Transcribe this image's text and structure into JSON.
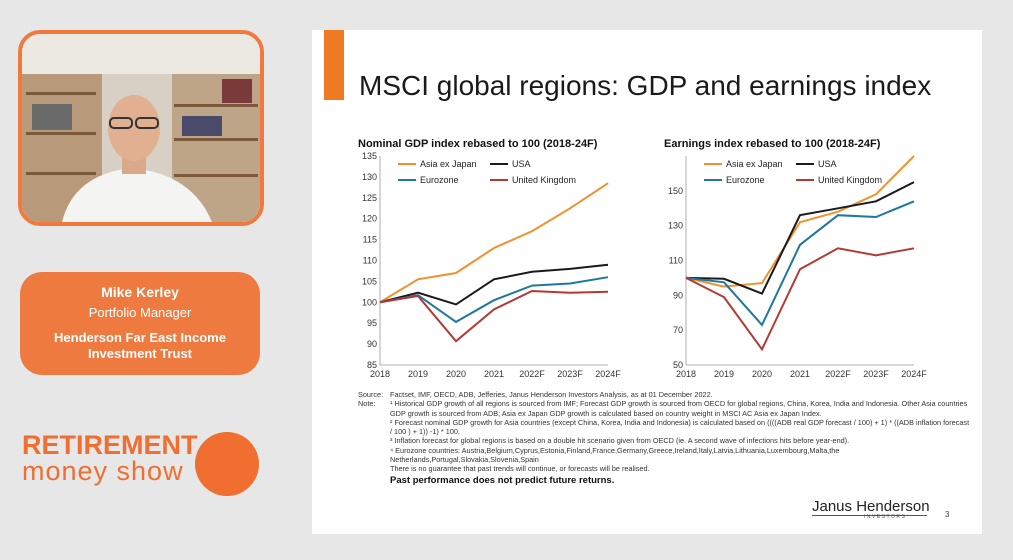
{
  "presenter": {
    "name": "Mike Kerley",
    "role": "Portfolio Manager",
    "organization": "Henderson Far East Income Investment Trust"
  },
  "show": {
    "line1": "RETIREMENT",
    "line2": "money show"
  },
  "slide": {
    "title": "MSCI global regions: GDP and earnings index",
    "page_number": "3",
    "brand": "Janus Henderson",
    "brand_sub": "INVESTORS",
    "source_label": "Source:",
    "source_text": "Factset, IMF, OECD, ADB, Jefferies, Janus Henderson Investors Analysis, as at 01 December 2022.",
    "note_label": "Note:",
    "notes": [
      "¹  Historical GDP growth of all regions is sourced from IMF;  Forecast GDP growth is sourced from OECD for global regions, China, Korea, India and Indonesia. Other Asia countries GDP growth is sourced from ADB; Asia ex Japan GDP growth is calculated based on country weight in MSCI AC Asia ex Japan Index.",
      "²  Forecast nominal GDP growth for Asia countries (except China, Korea, India and Indonesia) is calculated based on ((((ADB real GDP forecast / 100) + 1) * ((ADB inflation forecast / 100 ) + 1)) -1) * 100.",
      "³  Inflation forecast for global regions is based on a double hit scenario given from OECD (ie. A second wave of infections hits before year-end).",
      "⁴ Eurozone countries: Austria,Belgium,Cyprus,Estonia,Finland,France,Germany,Greece,Ireland,Italy,Latvia,Lithuania,Luxembourg,Malta,the Netherlands,Portugal,Slovakia,Slovenia,Spain",
      "There is no guarantee that past trends will continue, or forecasts will be realised."
    ],
    "performance_note": "Past performance does not predict future returns."
  },
  "colors": {
    "asia": "#f0912d",
    "usa": "#1a1a1a",
    "eurozone": "#1f77a0",
    "uk": "#b23a34",
    "accent": "#f07a24"
  },
  "chart_data": [
    {
      "type": "line",
      "title": "Nominal GDP index rebased to 100 (2018-24F)",
      "x": [
        "2018",
        "2019",
        "2020",
        "2021",
        "2022F",
        "2023F",
        "2024F"
      ],
      "ylim": [
        85,
        135
      ],
      "yticks": [
        "85",
        "90",
        "95",
        "100",
        "105",
        "110",
        "115",
        "120",
        "125",
        "130",
        "135"
      ],
      "legend": [
        "Asia ex Japan",
        "USA",
        "Eurozone",
        "United Kingdom"
      ],
      "series": [
        {
          "name": "Asia ex Japan",
          "color": "#f0912d",
          "values": [
            100,
            105.5,
            107,
            113,
            117,
            122.5,
            128.5
          ]
        },
        {
          "name": "USA",
          "color": "#1a1a1a",
          "values": [
            100,
            102.3,
            99.5,
            105.5,
            107.3,
            108,
            109
          ]
        },
        {
          "name": "Eurozone",
          "color": "#1f77a0",
          "values": [
            100,
            101.7,
            95.3,
            100.5,
            104,
            104.5,
            106
          ]
        },
        {
          "name": "United Kingdom",
          "color": "#b23a34",
          "values": [
            100,
            101.5,
            90.7,
            98.3,
            102.7,
            102.3,
            102.5
          ]
        }
      ]
    },
    {
      "type": "line",
      "title": "Earnings index rebased to 100  (2018-24F)",
      "x": [
        "2018",
        "2019",
        "2020",
        "2021",
        "2022F",
        "2023F",
        "2024F"
      ],
      "ylim": [
        50,
        170
      ],
      "yticks": [
        "50",
        "70",
        "90",
        "110",
        "130",
        "150"
      ],
      "legend": [
        "Asia ex Japan",
        "USA",
        "Eurozone",
        "United Kingdom"
      ],
      "series": [
        {
          "name": "Asia ex Japan",
          "color": "#f0912d",
          "values": [
            100,
            95,
            97,
            132,
            138,
            148,
            170
          ]
        },
        {
          "name": "USA",
          "color": "#1a1a1a",
          "values": [
            100,
            99.5,
            91,
            136,
            140,
            144,
            155
          ]
        },
        {
          "name": "Eurozone",
          "color": "#1f77a0",
          "values": [
            100,
            97.5,
            73,
            119,
            136,
            135,
            144
          ]
        },
        {
          "name": "United Kingdom",
          "color": "#b23a34",
          "values": [
            100,
            89,
            59,
            105,
            117,
            113,
            117
          ]
        }
      ]
    }
  ]
}
